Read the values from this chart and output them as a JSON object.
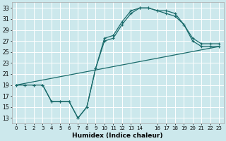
{
  "xlabel": "Humidex (Indice chaleur)",
  "bg_color": "#cce8ec",
  "grid_color": "#ffffff",
  "line_color": "#1a6b6b",
  "xlim": [
    -0.5,
    23.5
  ],
  "ylim": [
    12,
    34
  ],
  "xticks": [
    0,
    1,
    2,
    3,
    4,
    5,
    6,
    7,
    8,
    9,
    10,
    11,
    12,
    13,
    14,
    16,
    17,
    18,
    19,
    20,
    21,
    22,
    23
  ],
  "xtick_labels": [
    "0",
    "1",
    "2",
    "3",
    "4",
    "5",
    "6",
    "7",
    "8",
    "9",
    "10",
    "11",
    "12",
    "13",
    "14",
    "16",
    "17",
    "18",
    "19",
    "20",
    "21",
    "22",
    "23"
  ],
  "yticks": [
    13,
    15,
    17,
    19,
    21,
    23,
    25,
    27,
    29,
    31,
    33
  ],
  "ytick_labels": [
    "13",
    "15",
    "17",
    "19",
    "21",
    "23",
    "25",
    "27",
    "29",
    "31",
    "33"
  ],
  "curve1_x": [
    0,
    1,
    2,
    3,
    4,
    5,
    6,
    7,
    8,
    9,
    10,
    11,
    12,
    13,
    14,
    15,
    16,
    17,
    18,
    19,
    20,
    21,
    22,
    23
  ],
  "curve1_y": [
    19,
    19,
    19,
    19,
    16,
    16,
    16,
    13,
    15,
    22,
    27,
    27.5,
    30,
    32,
    33,
    33,
    32.5,
    32,
    31.5,
    30,
    27,
    26,
    26,
    26
  ],
  "curve2_x": [
    0,
    1,
    2,
    3,
    4,
    5,
    6,
    7,
    8,
    9,
    10,
    11,
    12,
    13,
    14,
    15,
    16,
    17,
    18,
    19,
    20,
    21,
    22,
    23
  ],
  "curve2_y": [
    19,
    19,
    19,
    19,
    16,
    16,
    16,
    13,
    15,
    22,
    27.5,
    28,
    30.5,
    32.5,
    33,
    33,
    32.5,
    32.5,
    32,
    30,
    27.5,
    26.5,
    26.5,
    26.5
  ],
  "line_x": [
    0,
    23
  ],
  "line_y": [
    19,
    26
  ]
}
